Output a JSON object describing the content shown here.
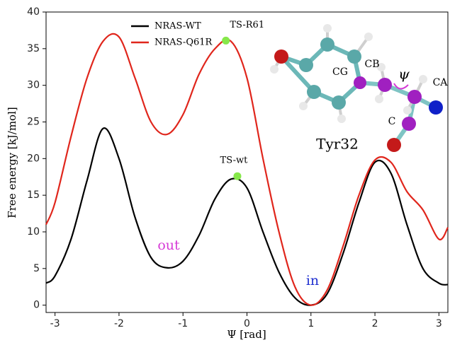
{
  "chart_data": {
    "type": "line",
    "x_label": "Ψ [rad]",
    "y_label": "Free energy [kJ/mol]",
    "x": [
      -3.14,
      -3,
      -2.75,
      -2.5,
      -2.25,
      -2,
      -1.75,
      -1.5,
      -1.25,
      -1,
      -0.75,
      -0.5,
      -0.25,
      0,
      0.25,
      0.5,
      0.75,
      1,
      1.25,
      1.5,
      1.75,
      2,
      2.25,
      2.5,
      2.75,
      3,
      3.14
    ],
    "series": [
      {
        "name": "NRAS-WT",
        "color": "#000000",
        "values": [
          3,
          4,
          9,
          17,
          24.1,
          20,
          12,
          6.5,
          5.1,
          6,
          9.5,
          14.5,
          17.2,
          16,
          10,
          4.5,
          1,
          0,
          1.5,
          7,
          14,
          19.5,
          18,
          11,
          5,
          3,
          2.8
        ]
      },
      {
        "name": "NRAS-Q61R",
        "color": "#e0261c",
        "values": [
          11,
          14,
          23,
          31,
          36,
          36.6,
          31,
          25,
          23.3,
          26,
          31.5,
          35,
          36,
          31,
          20,
          10,
          2.5,
          0,
          2,
          8,
          15,
          19.8,
          19.5,
          15.5,
          13,
          9,
          10.6
        ]
      }
    ],
    "points": [
      {
        "label": "TS-R61",
        "x": -0.33,
        "y": 36.1,
        "color": "#86e84a"
      },
      {
        "label": "TS-wt",
        "x": -0.15,
        "y": 17.6,
        "color": "#86e84a"
      }
    ],
    "annotations": [
      {
        "text": "out",
        "color": "#d63ad6"
      },
      {
        "text": "in",
        "color": "#1f2fd0"
      }
    ],
    "xlim": [
      -3.14,
      3.14
    ],
    "xticks": [
      -3,
      -2,
      -1,
      0,
      1,
      2,
      3
    ],
    "ylim": [
      -1,
      40
    ],
    "yticks": [
      0,
      5,
      10,
      15,
      20,
      25,
      30,
      35,
      40
    ],
    "grid": false,
    "legend": "upper-left",
    "inset": {
      "title": "Tyr32",
      "atoms": [
        "CG",
        "CB",
        "CA",
        "C"
      ],
      "angle": "ψ"
    }
  }
}
